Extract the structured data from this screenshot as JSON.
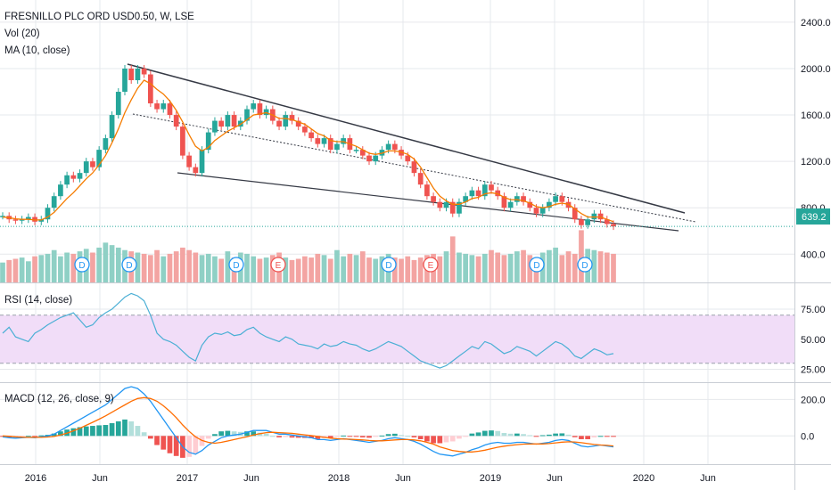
{
  "colors": {
    "up": "#26a69a",
    "down": "#ef5350",
    "ma": "#f57c00",
    "rsi": "#4bafd5",
    "rsi_band": "#f1ddf8",
    "macd": "#2196f3",
    "signal": "#ff6d00",
    "vol_up": "#8fd0c5",
    "vol_down": "#f3a4a2",
    "price_line": "#26a69a",
    "price_tag": "#26a69a",
    "earnings_e": "#ef5350",
    "dividend_d": "#2196f3",
    "grid": "#e6e8ec"
  },
  "legend": {
    "title": "FRESNILLO PLC ORD USD0.50, W, LSE",
    "vol": "Vol (20)",
    "ma": "MA (10, close)",
    "rsi": "RSI (14, close)",
    "macd": "MACD (12, 26, close, 9)"
  },
  "last_price_label": "639.2",
  "event_markers": [
    "D",
    "D",
    "D",
    "E",
    "D",
    "E",
    "D",
    "D"
  ],
  "chart_data": {
    "type": "line",
    "description_units": "weekly closing price, GBp",
    "price_axis": {
      "ticks": [
        "400.0",
        "800.0",
        "1200.0",
        "1600.0",
        "2000.0",
        "2400.0"
      ],
      "values": [
        400,
        800,
        1200,
        1600,
        2000,
        2400
      ],
      "range": [
        210,
        2530
      ]
    },
    "rsi_axis": {
      "ticks": [
        "25.00",
        "50.00",
        "75.00"
      ],
      "values": [
        25,
        50,
        75
      ],
      "range": [
        15,
        95
      ]
    },
    "macd_axis": {
      "ticks": [
        "0.0",
        "200.0"
      ],
      "values": [
        0,
        200
      ],
      "range": [
        -150,
        280
      ]
    },
    "x_ticks": [
      "2016",
      "Jun",
      "2017",
      "Jun",
      "2018",
      "Jun",
      "2019",
      "Jun",
      "2020",
      "Jun"
    ],
    "price_series": {
      "name": "",
      "values": [
        730,
        700,
        690,
        700,
        720,
        680,
        700,
        800,
        900,
        1000,
        1080,
        1050,
        1100,
        1200,
        1150,
        1300,
        1400,
        1600,
        1800,
        2000,
        1900,
        2000,
        1950,
        1700,
        1650,
        1700,
        1600,
        1500,
        1250,
        1150,
        1100,
        1300,
        1450,
        1550,
        1500,
        1600,
        1500,
        1550,
        1650,
        1700,
        1600,
        1650,
        1550,
        1500,
        1600,
        1550,
        1500,
        1450,
        1400,
        1350,
        1400,
        1300,
        1350,
        1400,
        1300,
        1300,
        1250,
        1200,
        1250,
        1300,
        1350,
        1300,
        1250,
        1200,
        1100,
        1000,
        900,
        850,
        800,
        850,
        750,
        850,
        900,
        950,
        900,
        1000,
        950,
        900,
        800,
        850,
        900,
        850,
        800,
        750,
        800,
        850,
        900,
        850,
        800,
        700,
        650,
        700,
        750,
        700,
        660,
        639
      ]
    },
    "ma_series": {
      "name": "",
      "values": [
        720,
        715,
        705,
        700,
        700,
        695,
        695,
        720,
        760,
        820,
        880,
        930,
        990,
        1050,
        1100,
        1170,
        1250,
        1360,
        1480,
        1620,
        1730,
        1830,
        1900,
        1870,
        1820,
        1780,
        1720,
        1640,
        1540,
        1430,
        1330,
        1290,
        1320,
        1380,
        1420,
        1460,
        1490,
        1520,
        1560,
        1600,
        1610,
        1620,
        1600,
        1570,
        1570,
        1560,
        1540,
        1520,
        1480,
        1440,
        1420,
        1380,
        1370,
        1370,
        1350,
        1330,
        1300,
        1270,
        1260,
        1270,
        1290,
        1290,
        1280,
        1260,
        1220,
        1150,
        1060,
        970,
        900,
        860,
        830,
        830,
        850,
        880,
        890,
        920,
        930,
        920,
        890,
        870,
        870,
        860,
        840,
        810,
        800,
        810,
        830,
        840,
        830,
        790,
        750,
        720,
        720,
        720,
        700,
        680
      ]
    },
    "volume_series": {
      "name": "",
      "values": [
        160,
        180,
        190,
        200,
        170,
        210,
        220,
        230,
        260,
        210,
        240,
        230,
        250,
        270,
        240,
        280,
        320,
        300,
        280,
        260,
        250,
        240,
        230,
        220,
        260,
        210,
        230,
        250,
        280,
        260,
        240,
        220,
        230,
        210,
        190,
        250,
        200,
        240,
        230,
        210,
        190,
        200,
        220,
        240,
        200,
        180,
        190,
        210,
        200,
        230,
        220,
        190,
        260,
        210,
        230,
        220,
        250,
        200,
        190,
        210,
        230,
        200,
        190,
        210,
        180,
        200,
        220,
        230,
        210,
        250,
        370,
        240,
        230,
        220,
        210,
        230,
        260,
        240,
        220,
        230,
        250,
        260,
        220,
        200,
        240,
        260,
        280,
        220,
        250,
        230,
        420,
        270,
        260,
        250,
        240,
        230
      ]
    },
    "rsi_series": {
      "name": "",
      "values": [
        55,
        60,
        52,
        50,
        48,
        55,
        58,
        62,
        65,
        68,
        70,
        72,
        66,
        60,
        62,
        68,
        72,
        75,
        80,
        85,
        88,
        86,
        82,
        70,
        55,
        50,
        48,
        45,
        40,
        35,
        32,
        45,
        52,
        55,
        54,
        56,
        53,
        54,
        58,
        60,
        55,
        52,
        50,
        48,
        52,
        50,
        46,
        45,
        44,
        42,
        46,
        44,
        45,
        48,
        46,
        45,
        42,
        40,
        42,
        45,
        48,
        46,
        44,
        40,
        36,
        32,
        30,
        28,
        26,
        28,
        32,
        36,
        40,
        44,
        42,
        48,
        46,
        42,
        38,
        40,
        44,
        42,
        40,
        36,
        40,
        44,
        48,
        46,
        42,
        36,
        34,
        38,
        42,
        40,
        37,
        38
      ]
    },
    "macd_series": {
      "name": "",
      "values": [
        -5,
        -10,
        -12,
        -10,
        -8,
        -10,
        -5,
        0,
        10,
        30,
        50,
        70,
        90,
        110,
        130,
        150,
        170,
        200,
        230,
        260,
        270,
        260,
        230,
        190,
        140,
        90,
        40,
        -10,
        -60,
        -90,
        -100,
        -80,
        -50,
        -30,
        -10,
        0,
        5,
        10,
        20,
        30,
        30,
        30,
        20,
        10,
        10,
        5,
        0,
        -5,
        -10,
        -20,
        -20,
        -25,
        -20,
        -15,
        -20,
        -25,
        -30,
        -35,
        -30,
        -25,
        -15,
        -10,
        -15,
        -20,
        -30,
        -45,
        -65,
        -85,
        -100,
        -105,
        -110,
        -100,
        -90,
        -75,
        -65,
        -50,
        -40,
        -35,
        -40,
        -40,
        -35,
        -35,
        -40,
        -45,
        -40,
        -35,
        -25,
        -20,
        -25,
        -40,
        -55,
        -60,
        -55,
        -50,
        -55,
        -60
      ]
    },
    "signal_series": {
      "name": "",
      "values": [
        0,
        -2,
        -5,
        -7,
        -8,
        -8,
        -8,
        -6,
        -3,
        5,
        15,
        28,
        42,
        58,
        75,
        92,
        110,
        130,
        150,
        170,
        190,
        205,
        210,
        205,
        190,
        165,
        135,
        100,
        60,
        25,
        -5,
        -25,
        -35,
        -40,
        -35,
        -28,
        -20,
        -12,
        -5,
        5,
        12,
        18,
        20,
        18,
        16,
        14,
        10,
        6,
        2,
        -3,
        -8,
        -12,
        -15,
        -17,
        -18,
        -20,
        -22,
        -25,
        -27,
        -27,
        -25,
        -22,
        -20,
        -20,
        -22,
        -27,
        -35,
        -45,
        -60,
        -70,
        -80,
        -85,
        -88,
        -88,
        -84,
        -78,
        -70,
        -62,
        -56,
        -52,
        -48,
        -45,
        -44,
        -44,
        -44,
        -42,
        -38,
        -34,
        -32,
        -33,
        -37,
        -42,
        -47,
        -50,
        -52,
        -55
      ]
    }
  }
}
